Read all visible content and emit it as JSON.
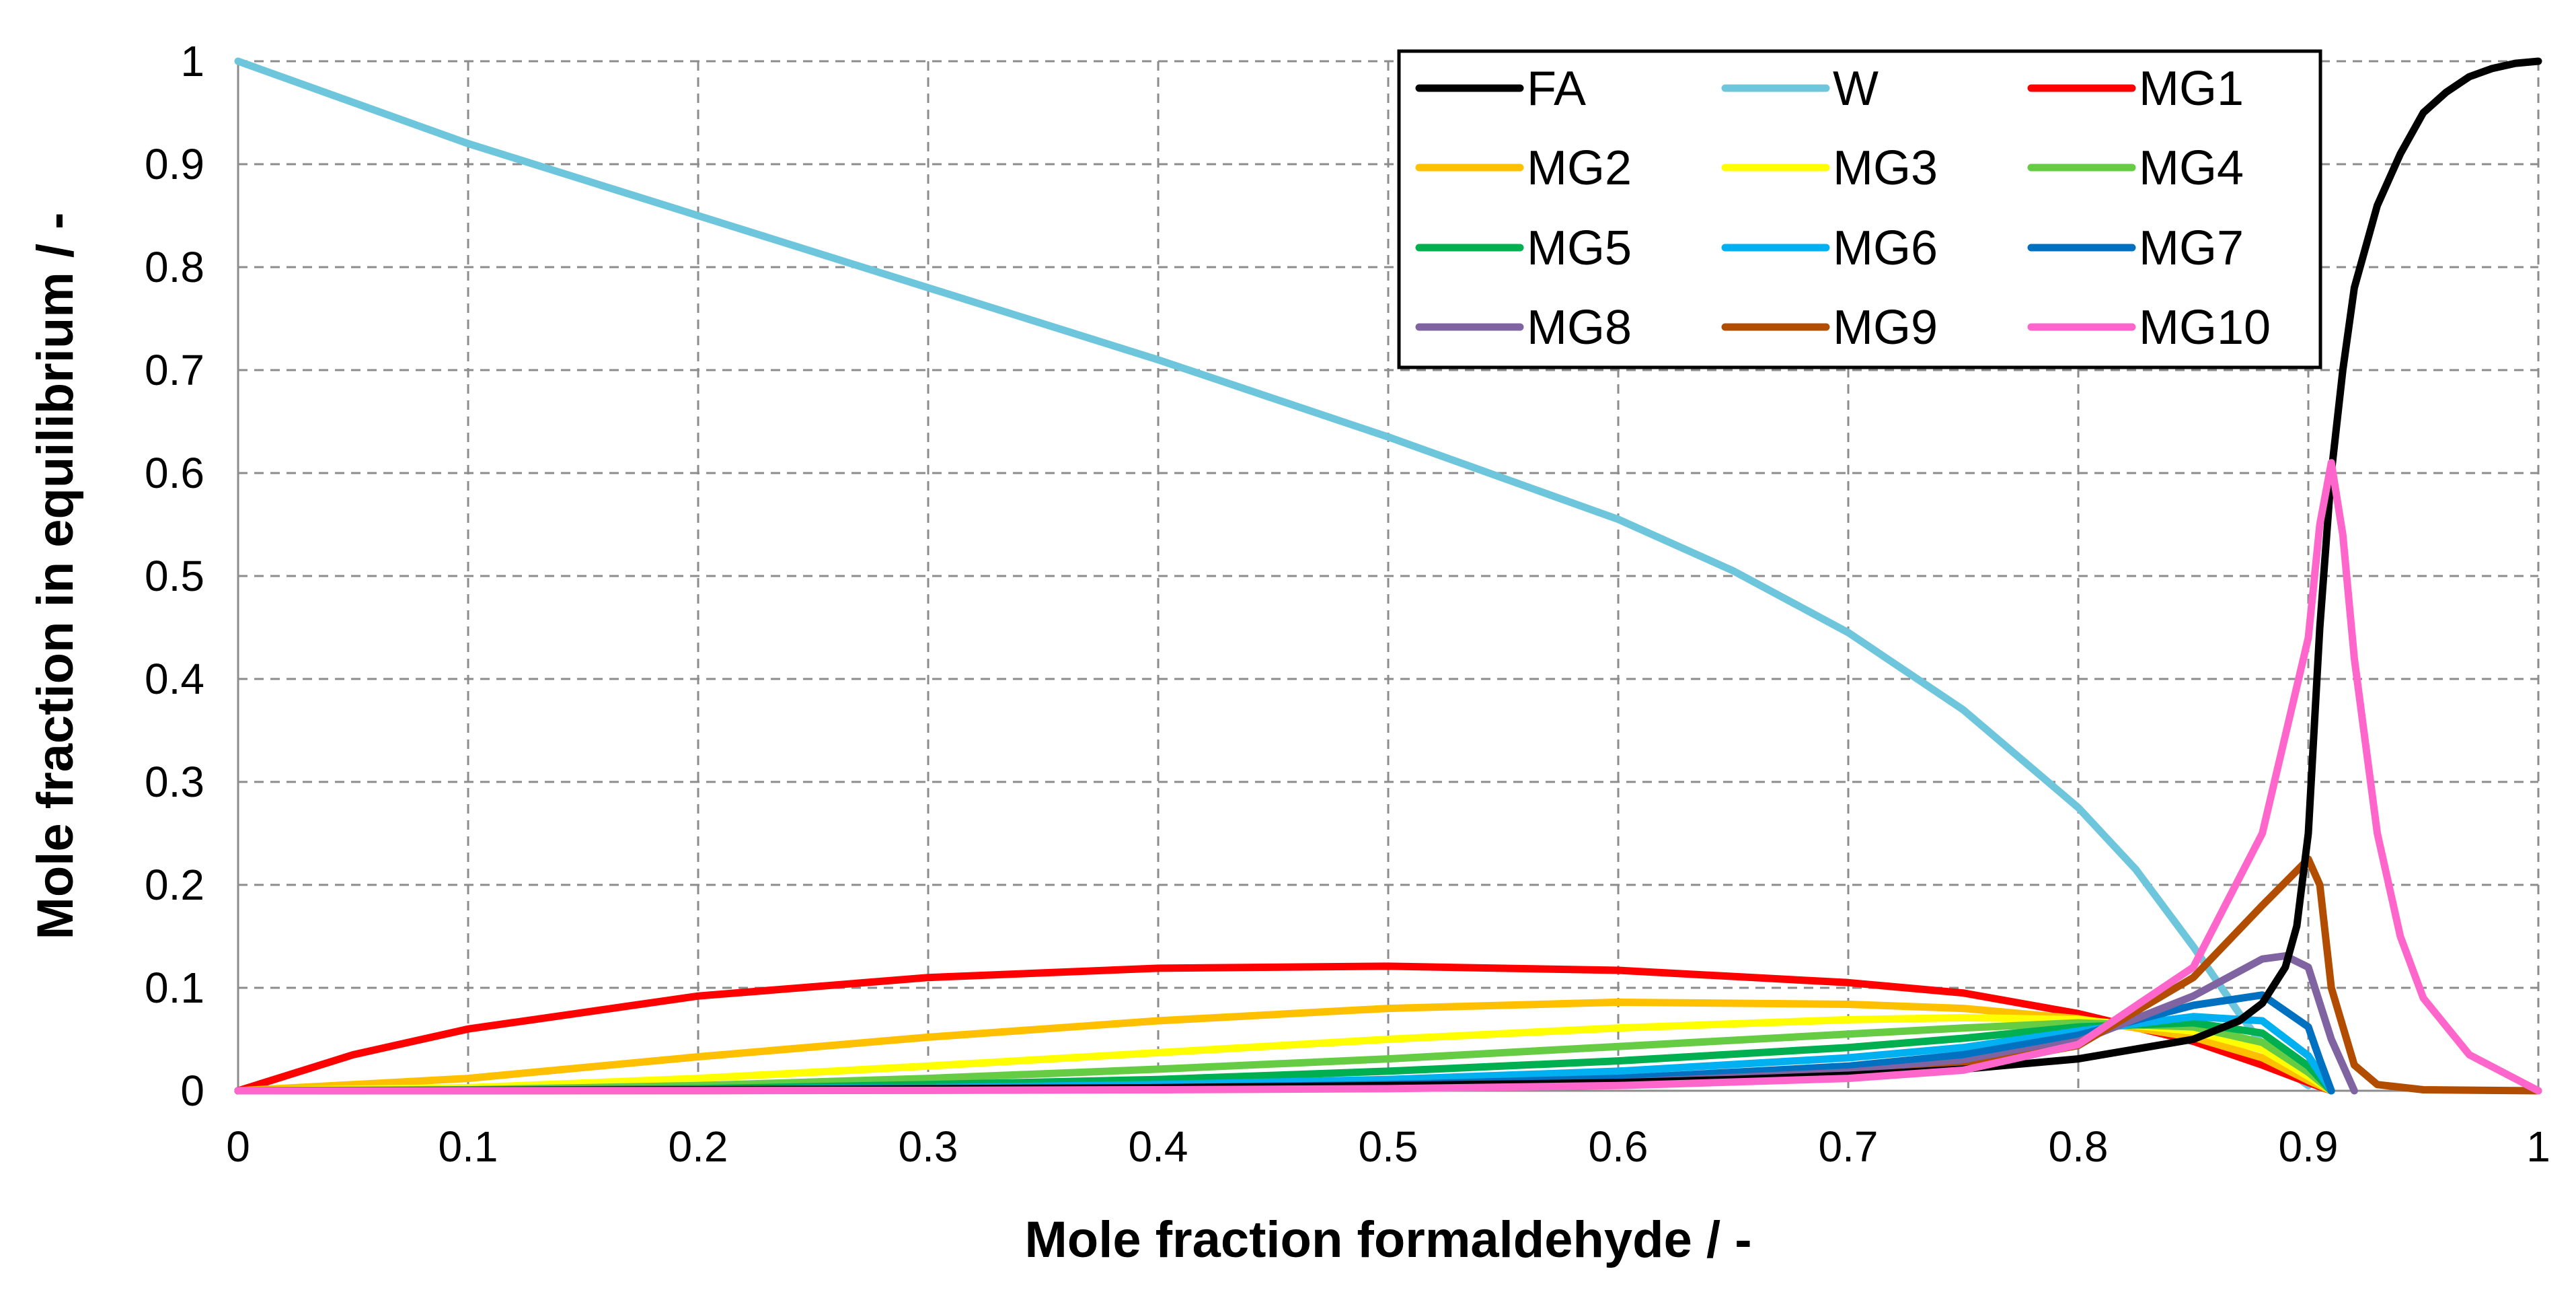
{
  "chart_data": {
    "type": "line",
    "title": "",
    "xlabel": "Mole fraction formaldehyde / -",
    "ylabel": "Mole fraction in equilibrium / -",
    "xlim": [
      0,
      1
    ],
    "ylim": [
      0,
      1
    ],
    "xticks": [
      "0",
      "0.1",
      "0.2",
      "0.3",
      "0.4",
      "0.5",
      "0.6",
      "0.7",
      "0.8",
      "0.9",
      "1"
    ],
    "yticks": [
      "0",
      "0.1",
      "0.2",
      "0.3",
      "0.4",
      "0.5",
      "0.6",
      "0.7",
      "0.8",
      "0.9",
      "1"
    ],
    "grid": true,
    "legend_position": "top-right",
    "series": [
      {
        "name": "FA",
        "color": "#000000",
        "x": [
          0,
          0.1,
          0.2,
          0.3,
          0.4,
          0.5,
          0.6,
          0.65,
          0.7,
          0.75,
          0.8,
          0.85,
          0.87,
          0.88,
          0.89,
          0.895,
          0.9,
          0.905,
          0.91,
          0.915,
          0.92,
          0.93,
          0.94,
          0.95,
          0.96,
          0.97,
          0.98,
          0.99,
          1.0
        ],
        "y": [
          0,
          0.0005,
          0.001,
          0.002,
          0.003,
          0.005,
          0.008,
          0.011,
          0.015,
          0.021,
          0.031,
          0.05,
          0.068,
          0.085,
          0.12,
          0.16,
          0.25,
          0.45,
          0.6,
          0.7,
          0.78,
          0.86,
          0.91,
          0.95,
          0.97,
          0.985,
          0.993,
          0.998,
          1.0
        ]
      },
      {
        "name": "W",
        "color": "#6ec6dc",
        "x": [
          0,
          0.1,
          0.2,
          0.3,
          0.4,
          0.5,
          0.6,
          0.65,
          0.7,
          0.75,
          0.8,
          0.825,
          0.85,
          0.87,
          0.885,
          0.9
        ],
        "y": [
          1.0,
          0.92,
          0.85,
          0.78,
          0.71,
          0.635,
          0.555,
          0.505,
          0.445,
          0.37,
          0.275,
          0.215,
          0.14,
          0.075,
          0.03,
          0.005
        ]
      },
      {
        "name": "MG1",
        "color": "#ff0000",
        "x": [
          0,
          0.05,
          0.1,
          0.2,
          0.3,
          0.4,
          0.5,
          0.6,
          0.7,
          0.75,
          0.8,
          0.85,
          0.88,
          0.9,
          0.91
        ],
        "y": [
          0,
          0.035,
          0.06,
          0.092,
          0.11,
          0.119,
          0.121,
          0.117,
          0.105,
          0.095,
          0.075,
          0.048,
          0.025,
          0.008,
          0
        ]
      },
      {
        "name": "MG2",
        "color": "#ffc000",
        "x": [
          0,
          0.1,
          0.2,
          0.3,
          0.4,
          0.5,
          0.6,
          0.7,
          0.75,
          0.8,
          0.85,
          0.88,
          0.9,
          0.91
        ],
        "y": [
          0,
          0.012,
          0.033,
          0.052,
          0.068,
          0.08,
          0.086,
          0.084,
          0.08,
          0.07,
          0.052,
          0.032,
          0.01,
          0
        ]
      },
      {
        "name": "MG3",
        "color": "#ffff00",
        "x": [
          0,
          0.1,
          0.2,
          0.3,
          0.4,
          0.5,
          0.6,
          0.7,
          0.75,
          0.8,
          0.85,
          0.88,
          0.9,
          0.91
        ],
        "y": [
          0,
          0.003,
          0.012,
          0.024,
          0.037,
          0.05,
          0.061,
          0.069,
          0.071,
          0.069,
          0.058,
          0.04,
          0.014,
          0
        ]
      },
      {
        "name": "MG4",
        "color": "#66cc44",
        "x": [
          0,
          0.1,
          0.2,
          0.3,
          0.4,
          0.5,
          0.6,
          0.7,
          0.75,
          0.8,
          0.85,
          0.88,
          0.9,
          0.91
        ],
        "y": [
          0,
          0.001,
          0.005,
          0.012,
          0.021,
          0.031,
          0.043,
          0.055,
          0.061,
          0.066,
          0.062,
          0.047,
          0.018,
          0
        ]
      },
      {
        "name": "MG5",
        "color": "#00b050",
        "x": [
          0,
          0.1,
          0.2,
          0.3,
          0.4,
          0.5,
          0.6,
          0.7,
          0.75,
          0.8,
          0.85,
          0.88,
          0.9,
          0.91
        ],
        "y": [
          0,
          0.0004,
          0.002,
          0.006,
          0.011,
          0.019,
          0.029,
          0.042,
          0.051,
          0.062,
          0.066,
          0.056,
          0.024,
          0
        ]
      },
      {
        "name": "MG6",
        "color": "#00b0f0",
        "x": [
          0,
          0.1,
          0.2,
          0.3,
          0.4,
          0.5,
          0.6,
          0.7,
          0.75,
          0.8,
          0.85,
          0.88,
          0.9,
          0.91
        ],
        "y": [
          0,
          0.0002,
          0.001,
          0.003,
          0.006,
          0.011,
          0.019,
          0.032,
          0.042,
          0.058,
          0.072,
          0.068,
          0.034,
          0
        ]
      },
      {
        "name": "MG7",
        "color": "#0070c0",
        "x": [
          0,
          0.1,
          0.2,
          0.3,
          0.4,
          0.5,
          0.6,
          0.7,
          0.75,
          0.8,
          0.85,
          0.88,
          0.9,
          0.905,
          0.91
        ],
        "y": [
          0,
          0.0001,
          0.0005,
          0.0015,
          0.003,
          0.006,
          0.012,
          0.024,
          0.035,
          0.054,
          0.083,
          0.093,
          0.062,
          0.03,
          0
        ]
      },
      {
        "name": "MG8",
        "color": "#8064a2",
        "x": [
          0,
          0.1,
          0.2,
          0.3,
          0.4,
          0.5,
          0.6,
          0.7,
          0.75,
          0.8,
          0.85,
          0.88,
          0.89,
          0.9,
          0.91,
          0.92
        ],
        "y": [
          0,
          0.0001,
          0.0003,
          0.001,
          0.002,
          0.004,
          0.008,
          0.018,
          0.028,
          0.048,
          0.092,
          0.128,
          0.131,
          0.12,
          0.05,
          0
        ]
      },
      {
        "name": "MG9",
        "color": "#b24d00",
        "x": [
          0,
          0.1,
          0.2,
          0.3,
          0.4,
          0.5,
          0.6,
          0.7,
          0.75,
          0.8,
          0.85,
          0.88,
          0.9,
          0.905,
          0.91,
          0.92,
          0.93,
          0.95,
          1.0
        ],
        "y": [
          0,
          0.0001,
          0.0002,
          0.0006,
          0.0012,
          0.003,
          0.006,
          0.014,
          0.023,
          0.044,
          0.11,
          0.18,
          0.225,
          0.2,
          0.1,
          0.025,
          0.006,
          0.001,
          0
        ]
      },
      {
        "name": "MG10",
        "color": "#ff66cc",
        "x": [
          0,
          0.1,
          0.2,
          0.3,
          0.4,
          0.5,
          0.6,
          0.7,
          0.75,
          0.8,
          0.85,
          0.88,
          0.9,
          0.905,
          0.91,
          0.915,
          0.92,
          0.93,
          0.94,
          0.95,
          0.97,
          1.0
        ],
        "y": [
          0,
          0.0001,
          0.0002,
          0.0004,
          0.001,
          0.002,
          0.005,
          0.012,
          0.02,
          0.045,
          0.12,
          0.25,
          0.44,
          0.55,
          0.61,
          0.54,
          0.42,
          0.25,
          0.15,
          0.09,
          0.035,
          0
        ]
      }
    ]
  }
}
